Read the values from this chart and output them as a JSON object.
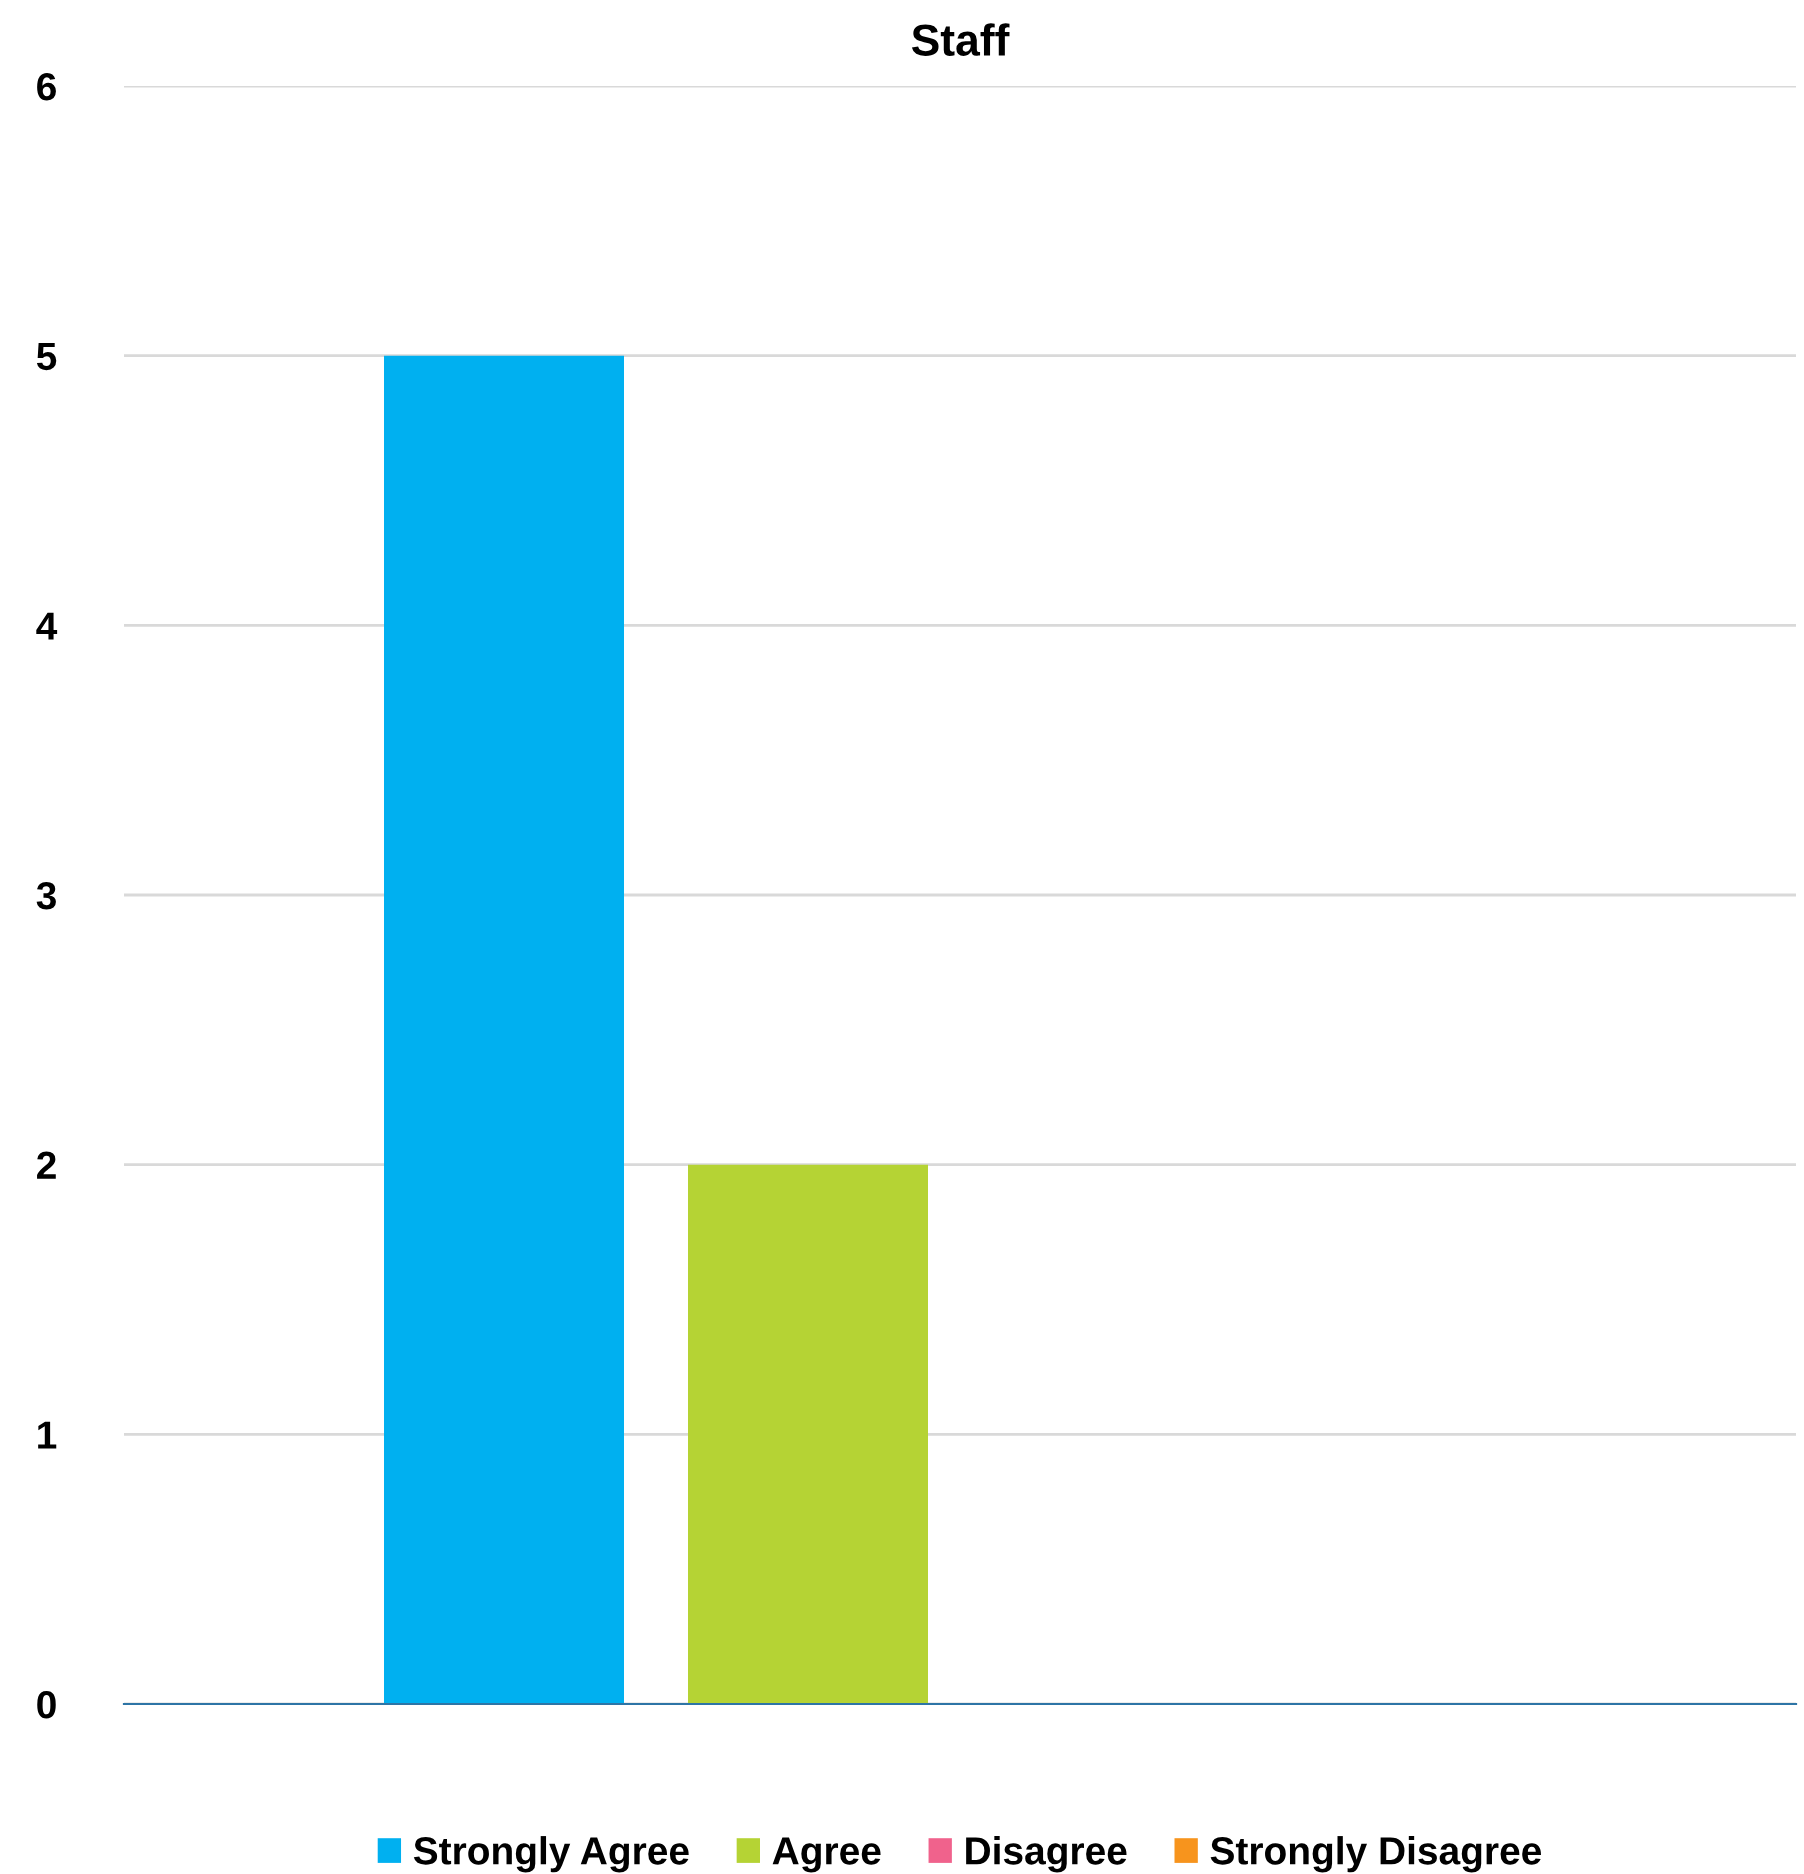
{
  "chart_data": {
    "type": "bar",
    "title": "Staff",
    "categories": [
      null
    ],
    "series": [
      {
        "name": "Strongly Agree",
        "color": "#00b0f0",
        "values": [
          5
        ]
      },
      {
        "name": "Agree",
        "color": "#b5d334",
        "values": [
          2
        ]
      },
      {
        "name": "Disagree",
        "color": "#f0628c",
        "values": [
          0
        ]
      },
      {
        "name": "Strongly Disagree",
        "color": "#f7941d",
        "values": [
          0
        ]
      }
    ],
    "ylim": [
      0,
      6
    ],
    "yticks": [
      0,
      1,
      2,
      3,
      4,
      5,
      6
    ],
    "grid": "y",
    "legend": "bottom"
  }
}
